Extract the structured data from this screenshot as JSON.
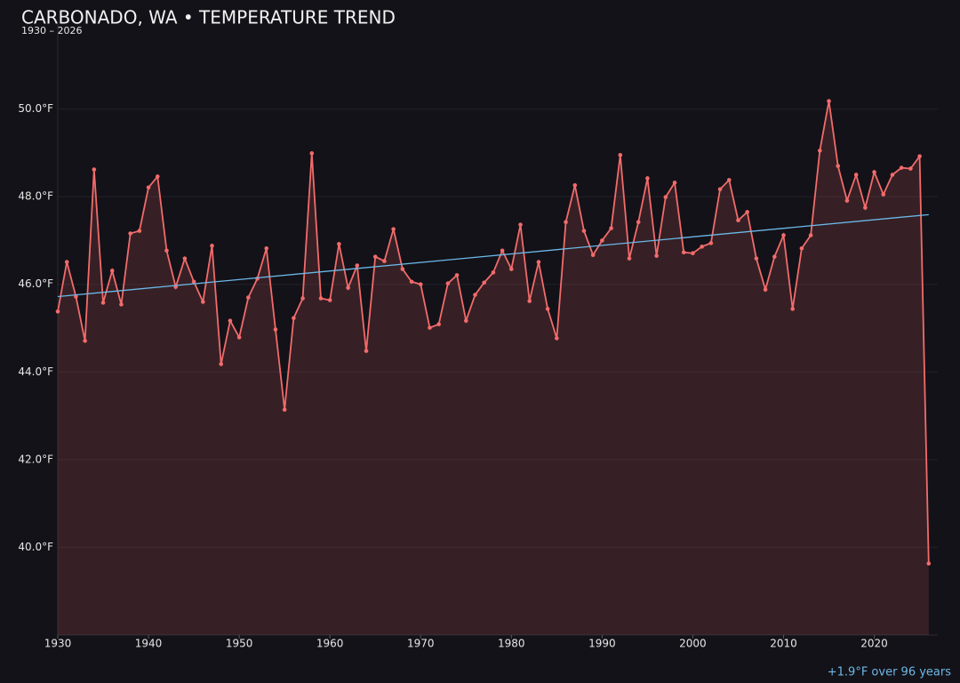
{
  "chart_data": {
    "type": "line",
    "title": "CARBONADO, WA • TEMPERATURE TREND",
    "subtitle": "1930 – 2026",
    "annotation": "+1.9°F over 96 years",
    "x": [
      1930,
      1931,
      1932,
      1933,
      1934,
      1935,
      1936,
      1937,
      1938,
      1939,
      1940,
      1941,
      1942,
      1943,
      1944,
      1945,
      1946,
      1947,
      1948,
      1949,
      1950,
      1951,
      1952,
      1953,
      1954,
      1955,
      1956,
      1957,
      1958,
      1959,
      1960,
      1961,
      1962,
      1963,
      1964,
      1965,
      1966,
      1967,
      1968,
      1969,
      1970,
      1971,
      1972,
      1973,
      1974,
      1975,
      1976,
      1977,
      1978,
      1979,
      1980,
      1981,
      1982,
      1983,
      1984,
      1985,
      1986,
      1987,
      1988,
      1989,
      1990,
      1991,
      1992,
      1993,
      1994,
      1995,
      1996,
      1997,
      1998,
      1999,
      2000,
      2001,
      2002,
      2003,
      2004,
      2005,
      2006,
      2007,
      2008,
      2009,
      2010,
      2011,
      2012,
      2013,
      2014,
      2015,
      2016,
      2017,
      2018,
      2019,
      2020,
      2021,
      2022,
      2023,
      2024,
      2025,
      2026
    ],
    "series": [
      {
        "color": "#f26b6b",
        "values": [
          45.38,
          46.51,
          45.72,
          44.71,
          48.62,
          45.58,
          46.31,
          45.54,
          47.16,
          47.22,
          48.21,
          48.46,
          46.77,
          45.94,
          46.59,
          46.06,
          45.6,
          46.88,
          44.18,
          45.17,
          44.79,
          45.7,
          46.13,
          46.82,
          44.97,
          43.14,
          45.23,
          45.68,
          48.99,
          45.68,
          45.64,
          46.92,
          45.92,
          46.43,
          44.48,
          46.63,
          46.53,
          47.26,
          46.35,
          46.06,
          46.0,
          45.01,
          45.09,
          46.02,
          46.21,
          45.17,
          45.76,
          46.04,
          46.27,
          46.77,
          46.35,
          47.36,
          45.62,
          46.51,
          45.44,
          44.77,
          47.42,
          48.26,
          47.22,
          46.67,
          47.0,
          47.28,
          48.95,
          46.59,
          47.42,
          48.42,
          46.65,
          47.99,
          48.32,
          46.73,
          46.71,
          46.86,
          46.94,
          48.17,
          48.38,
          47.46,
          47.65,
          46.59,
          45.88,
          46.63,
          47.12,
          45.44,
          46.82,
          47.12,
          49.05,
          50.18,
          48.7,
          47.91,
          48.5,
          47.75,
          48.56,
          48.05,
          48.5,
          48.66,
          48.64,
          48.92,
          39.63
        ]
      }
    ],
    "trend": {
      "color": "#6cb8e8",
      "x": [
        1930,
        2026
      ],
      "values": [
        45.72,
        47.59
      ]
    },
    "xlim": [
      1930,
      2027
    ],
    "ylim": [
      38,
      52
    ],
    "xticks": [
      1930,
      1940,
      1950,
      1960,
      1970,
      1980,
      1990,
      2000,
      2010,
      2020
    ],
    "yticks": [
      {
        "value": 40,
        "label": "40.0°F"
      },
      {
        "value": 42,
        "label": "42.0°F"
      },
      {
        "value": 44,
        "label": "44.0°F"
      },
      {
        "value": 46,
        "label": "46.0°F"
      },
      {
        "value": 48,
        "label": "48.0°F"
      },
      {
        "value": 50,
        "label": "50.0°F"
      }
    ],
    "grid": true
  }
}
